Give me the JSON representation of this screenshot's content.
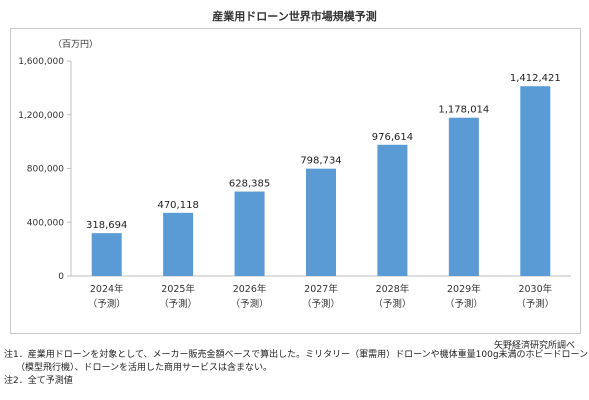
{
  "chart_data": {
    "type": "bar",
    "title": "産業用ドローン世界市場規模予測",
    "unit_label": "（百万円）",
    "categories": [
      "2024年",
      "2025年",
      "2026年",
      "2027年",
      "2028年",
      "2029年",
      "2030年"
    ],
    "category_sublabels": [
      "（予測）",
      "（予測）",
      "（予測）",
      "（予測）",
      "（予測）",
      "（予測）",
      "（予測）"
    ],
    "values": [
      318694,
      470118,
      628385,
      798734,
      976614,
      1178014,
      1412421
    ],
    "value_labels": [
      "318,694",
      "470,118",
      "628,385",
      "798,734",
      "976,614",
      "1,178,014",
      "1,412,421"
    ],
    "ylim": [
      0,
      1600000
    ],
    "yticks": [
      0,
      400000,
      800000,
      1200000,
      1600000
    ],
    "ytick_labels": [
      "0",
      "400,000",
      "800,000",
      "1,200,000",
      "1,600,000"
    ],
    "bar_color": "#5b9bd5",
    "grid": false,
    "legend": "none"
  },
  "source": "矢野経済研究所調べ",
  "notes": [
    "注1．産業用ドローンを対象として、メーカー販売金額ベースで算出した。ミリタリー（軍需用）ドローンや機体重量100g未満のホビードローン",
    "（模型飛行機）、ドローンを活用した商用サービスは含まない。",
    "注2．全て予測値"
  ]
}
